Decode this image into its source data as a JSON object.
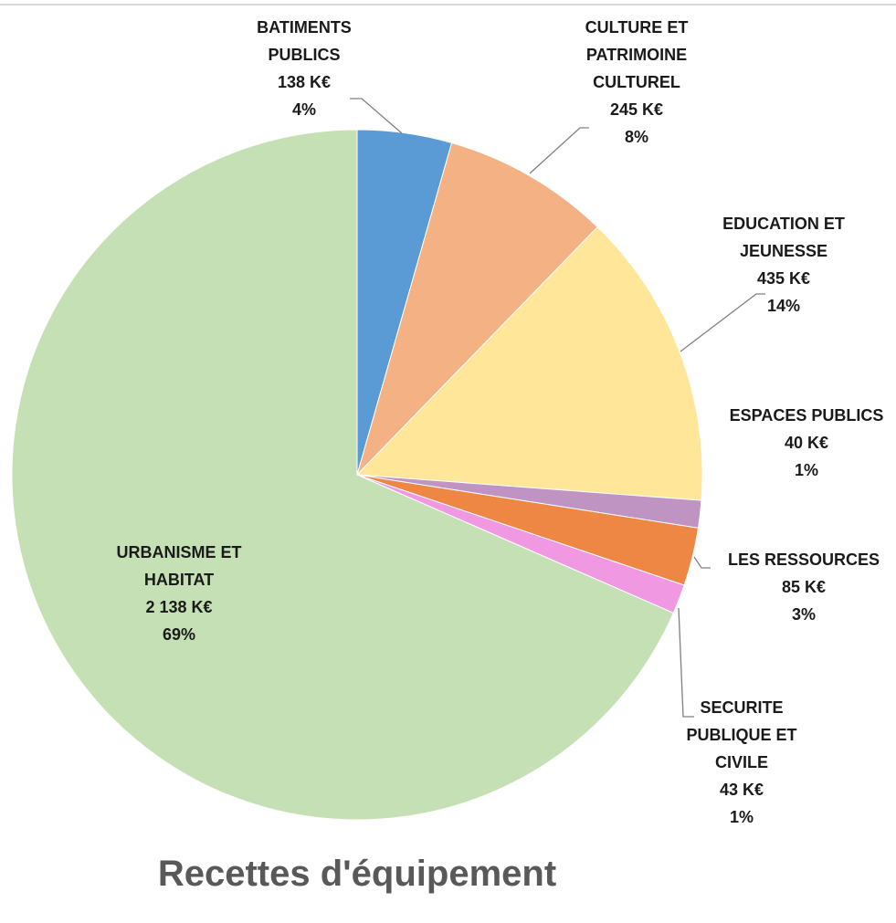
{
  "chart_data": {
    "type": "pie",
    "title": "Recettes d'équipement",
    "categories": [
      "BATIMENTS PUBLICS",
      "CULTURE ET PATRIMOINE CULTUREL",
      "EDUCATION ET JEUNESSE",
      "ESPACES PUBLICS",
      "LES RESSOURCES",
      "SECURITE PUBLIQUE ET CIVILE",
      "URBANISME ET HABITAT"
    ],
    "values": [
      138,
      245,
      435,
      40,
      85,
      43,
      2138
    ],
    "value_labels": [
      "138 K€",
      "245 K€",
      "435 K€",
      "40 K€",
      "85 K€",
      "43 K€",
      "2 138 K€"
    ],
    "percent_labels": [
      "4%",
      "8%",
      "14%",
      "1%",
      "3%",
      "1%",
      "69%"
    ],
    "colors": [
      "#5b9bd5",
      "#f4b183",
      "#ffe699",
      "#bf94c2",
      "#ed8743",
      "#f198e3",
      "#c5e0b4"
    ]
  }
}
